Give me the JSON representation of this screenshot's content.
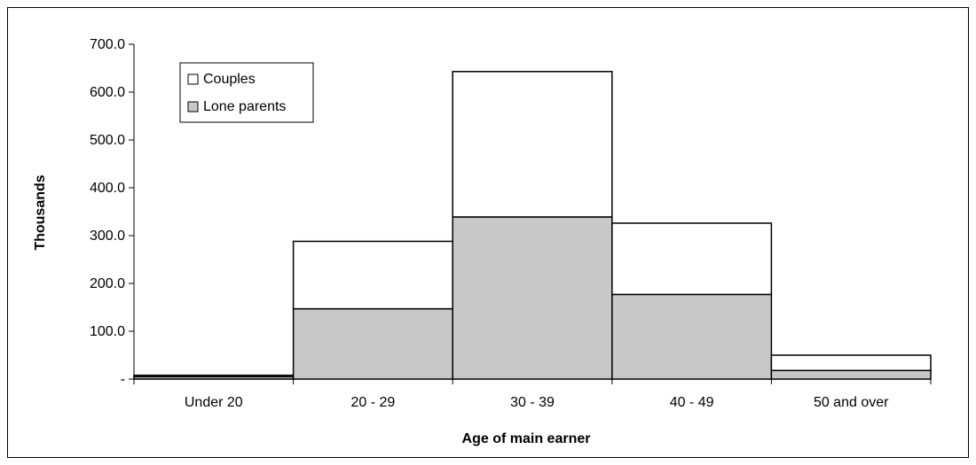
{
  "chart_data": {
    "type": "bar",
    "stacked": true,
    "categories": [
      "Under 20",
      "20 - 29",
      "30 - 39",
      "40 - 49",
      "50 and over"
    ],
    "series": [
      {
        "name": "Lone parents",
        "values": [
          5,
          147,
          339,
          177,
          18
        ],
        "color": "#c8c8c8"
      },
      {
        "name": "Couples",
        "values": [
          3,
          141,
          304,
          149,
          32
        ],
        "color": "#ffffff"
      }
    ],
    "totals": [
      8,
      288,
      643,
      326,
      50
    ],
    "xlabel": "Age of main earner",
    "ylabel": "Thousands",
    "ylim": [
      0,
      700
    ],
    "yticks": [
      0,
      100,
      200,
      300,
      400,
      500,
      600,
      700
    ],
    "ytick_labels": [
      "-",
      "100.0",
      "200.0",
      "300.0",
      "400.0",
      "500.0",
      "600.0",
      "700.0"
    ],
    "legend": {
      "position": "top-left",
      "entries": [
        "Couples",
        "Lone parents"
      ]
    },
    "grid": false
  }
}
